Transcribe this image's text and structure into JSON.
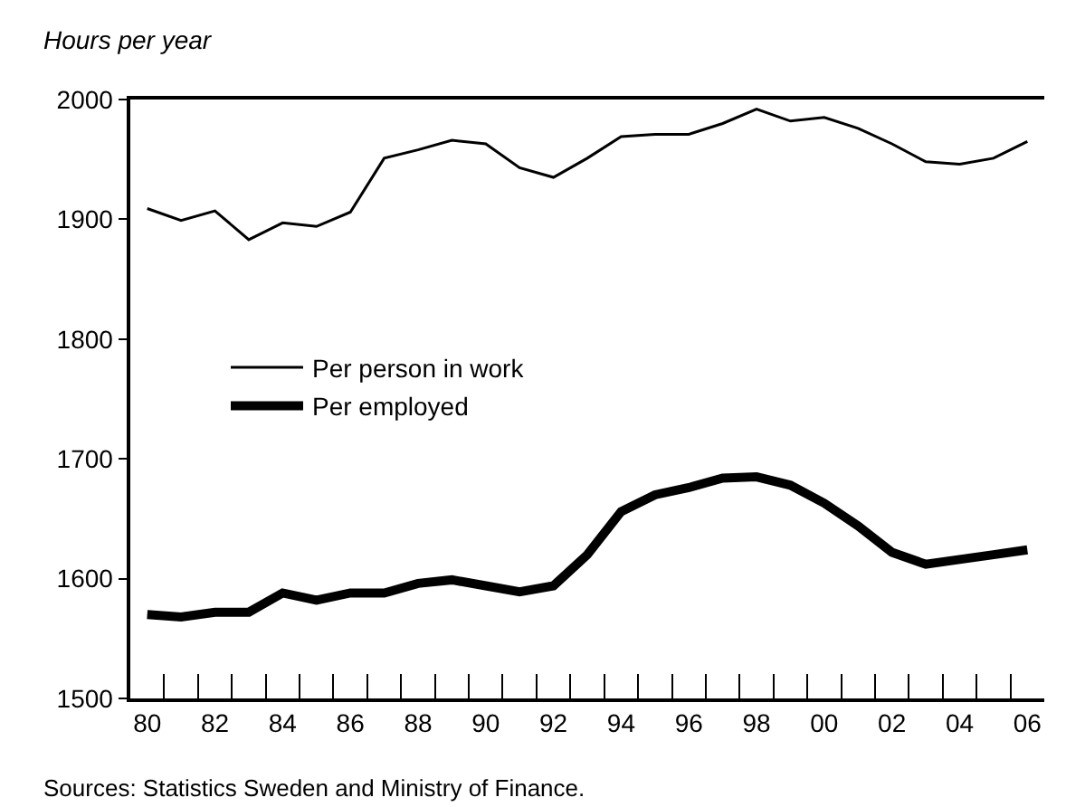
{
  "chart_data": {
    "type": "line",
    "subtitle": "Hours per year",
    "x": [
      1980,
      1981,
      1982,
      1983,
      1984,
      1985,
      1986,
      1987,
      1988,
      1989,
      1990,
      1991,
      1992,
      1993,
      1994,
      1995,
      1996,
      1997,
      1998,
      1999,
      2000,
      2001,
      2002,
      2003,
      2004,
      2005,
      2006
    ],
    "series": [
      {
        "name": "Per person in work",
        "color": "#000000",
        "values": [
          1909,
          1899,
          1907,
          1883,
          1897,
          1894,
          1906,
          1951,
          1958,
          1966,
          1963,
          1943,
          1935,
          1951,
          1969,
          1971,
          1971,
          1980,
          1992,
          1982,
          1985,
          1976,
          1963,
          1948,
          1946,
          1951,
          1965
        ]
      },
      {
        "name": "Per employed",
        "color": "#000000",
        "values": [
          1570,
          1568,
          1572,
          1572,
          1588,
          1582,
          1588,
          1588,
          1596,
          1599,
          1594,
          1589,
          1594,
          1620,
          1656,
          1670,
          1676,
          1684,
          1685,
          1678,
          1663,
          1644,
          1622,
          1612,
          1616,
          1620,
          1624
        ]
      }
    ],
    "xlim": [
      1979.5,
      2006.5
    ],
    "xticks": [
      {
        "value": 1980,
        "label": "80"
      },
      {
        "value": 1980.5,
        "label": null
      },
      {
        "value": 1981.5,
        "label": null
      },
      {
        "value": 1982,
        "label": "82"
      },
      {
        "value": 1982.5,
        "label": null
      },
      {
        "value": 1983.5,
        "label": null
      },
      {
        "value": 1984,
        "label": "84"
      },
      {
        "value": 1984.5,
        "label": null
      },
      {
        "value": 1985.5,
        "label": null
      },
      {
        "value": 1986,
        "label": "86"
      },
      {
        "value": 1986.5,
        "label": null
      },
      {
        "value": 1987.5,
        "label": null
      },
      {
        "value": 1988,
        "label": "88"
      },
      {
        "value": 1988.5,
        "label": null
      },
      {
        "value": 1989.5,
        "label": null
      },
      {
        "value": 1990,
        "label": "90"
      },
      {
        "value": 1990.5,
        "label": null
      },
      {
        "value": 1991.5,
        "label": null
      },
      {
        "value": 1992,
        "label": "92"
      },
      {
        "value": 1992.5,
        "label": null
      },
      {
        "value": 1993.5,
        "label": null
      },
      {
        "value": 1994,
        "label": "94"
      },
      {
        "value": 1994.5,
        "label": null
      },
      {
        "value": 1995.5,
        "label": null
      },
      {
        "value": 1996,
        "label": "96"
      },
      {
        "value": 1996.5,
        "label": null
      },
      {
        "value": 1997.5,
        "label": null
      },
      {
        "value": 1998,
        "label": "98"
      },
      {
        "value": 1998.5,
        "label": null
      },
      {
        "value": 1999.5,
        "label": null
      },
      {
        "value": 2000,
        "label": "00"
      },
      {
        "value": 2000.5,
        "label": null
      },
      {
        "value": 2001.5,
        "label": null
      },
      {
        "value": 2002,
        "label": "02"
      },
      {
        "value": 2002.5,
        "label": null
      },
      {
        "value": 2003.5,
        "label": null
      },
      {
        "value": 2004,
        "label": "04"
      },
      {
        "value": 2004.5,
        "label": null
      },
      {
        "value": 2005.5,
        "label": null
      },
      {
        "value": 2006,
        "label": "06"
      }
    ],
    "ylim": [
      1500,
      2000
    ],
    "yticks": [
      1500,
      1600,
      1700,
      1800,
      1900,
      2000
    ],
    "legend": "left",
    "marker": "none",
    "line_style": "solid",
    "annotations": [
      "Sources: Statistics Sweden and Ministry of Finance."
    ]
  }
}
